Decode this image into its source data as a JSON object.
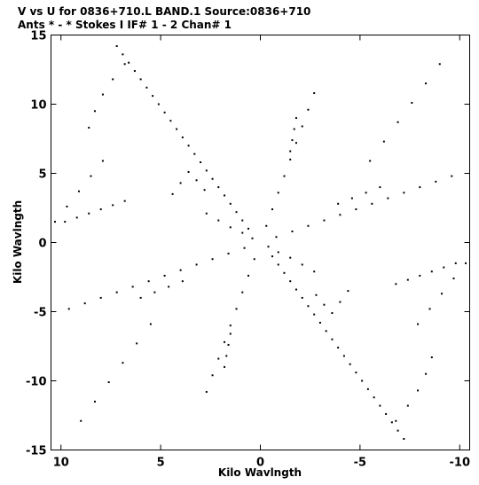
{
  "header": {
    "title_line1": "V vs U for 0836+710.L BAND.1   Source:0836+710",
    "title_line2": "Ants * - *    Stokes I  IF# 1 - 2   Chan# 1"
  },
  "chart_data": {
    "type": "scatter",
    "title": "V vs U for 0836+710.L BAND.1   Source:0836+710",
    "subtitle": "Ants * - *    Stokes I  IF# 1 - 2   Chan# 1",
    "xlabel": "Kilo Wavlngth",
    "ylabel": "Kilo Wavlngth",
    "xlim": [
      10.5,
      -10.5
    ],
    "ylim": [
      -15,
      15
    ],
    "x_axis_reversed": true,
    "grid": false,
    "x_ticks": [
      10,
      5,
      0,
      -5,
      -10
    ],
    "x_tick_labels": [
      "10",
      "5",
      "0",
      "-5",
      "-10"
    ],
    "y_ticks": [
      15,
      10,
      5,
      0,
      -5,
      -10,
      -15
    ],
    "y_tick_labels": [
      "15",
      "10",
      "5",
      "0",
      "-5",
      "-10",
      "-15"
    ],
    "marker_color": "#000000",
    "series": [
      {
        "points": [
          [
            0.6,
            1.0
          ],
          [
            0.9,
            1.6
          ],
          [
            1.2,
            2.2
          ],
          [
            1.5,
            2.8
          ],
          [
            1.8,
            3.4
          ],
          [
            2.1,
            4.0
          ],
          [
            2.4,
            4.6
          ],
          [
            2.7,
            5.2
          ],
          [
            3.0,
            5.8
          ],
          [
            3.3,
            6.4
          ],
          [
            3.6,
            7.0
          ],
          [
            3.9,
            7.6
          ],
          [
            4.2,
            8.2
          ],
          [
            4.5,
            8.8
          ],
          [
            4.8,
            9.4
          ],
          [
            5.1,
            10.0
          ],
          [
            5.4,
            10.6
          ],
          [
            5.7,
            11.2
          ],
          [
            6.0,
            11.8
          ],
          [
            6.3,
            12.4
          ],
          [
            6.6,
            13.0
          ],
          [
            6.9,
            13.6
          ],
          [
            7.2,
            14.2
          ],
          [
            -0.6,
            -1.0
          ],
          [
            -0.9,
            -1.6
          ],
          [
            -1.2,
            -2.2
          ],
          [
            -1.5,
            -2.8
          ],
          [
            -1.8,
            -3.4
          ],
          [
            -2.1,
            -4.0
          ],
          [
            -2.4,
            -4.6
          ],
          [
            -2.7,
            -5.2
          ],
          [
            -3.0,
            -5.8
          ],
          [
            -3.3,
            -6.4
          ],
          [
            -3.6,
            -7.0
          ],
          [
            -3.9,
            -7.6
          ],
          [
            -4.2,
            -8.2
          ],
          [
            -4.5,
            -8.8
          ],
          [
            -4.8,
            -9.4
          ],
          [
            -5.1,
            -10.0
          ],
          [
            -5.4,
            -10.6
          ],
          [
            -5.7,
            -11.2
          ],
          [
            -6.0,
            -11.8
          ],
          [
            -6.3,
            -12.4
          ],
          [
            -6.6,
            -13.0
          ],
          [
            -6.9,
            -13.6
          ],
          [
            -7.2,
            -14.2
          ],
          [
            -0.8,
            0.4
          ],
          [
            -1.6,
            0.8
          ],
          [
            -2.4,
            1.2
          ],
          [
            -3.2,
            1.6
          ],
          [
            -4.0,
            2.0
          ],
          [
            -4.8,
            2.4
          ],
          [
            -5.6,
            2.8
          ],
          [
            -6.4,
            3.2
          ],
          [
            -7.2,
            3.6
          ],
          [
            -8.0,
            4.0
          ],
          [
            -8.8,
            4.4
          ],
          [
            -9.6,
            4.8
          ],
          [
            0.8,
            -0.4
          ],
          [
            1.6,
            -0.8
          ],
          [
            2.4,
            -1.2
          ],
          [
            3.2,
            -1.6
          ],
          [
            4.0,
            -2.0
          ],
          [
            4.8,
            -2.4
          ],
          [
            5.6,
            -2.8
          ],
          [
            6.4,
            -3.2
          ],
          [
            7.2,
            -3.6
          ],
          [
            8.0,
            -4.0
          ],
          [
            8.8,
            -4.4
          ],
          [
            9.6,
            -4.8
          ],
          [
            -0.3,
            1.2
          ],
          [
            -0.6,
            2.4
          ],
          [
            -0.9,
            3.6
          ],
          [
            -1.2,
            4.8
          ],
          [
            -1.5,
            6.0
          ],
          [
            -1.8,
            7.2
          ],
          [
            -2.1,
            8.4
          ],
          [
            -2.4,
            9.6
          ],
          [
            -2.7,
            10.8
          ],
          [
            0.3,
            -1.2
          ],
          [
            0.6,
            -2.4
          ],
          [
            0.9,
            -3.6
          ],
          [
            1.2,
            -4.8
          ],
          [
            1.5,
            -6.0
          ],
          [
            1.8,
            -7.2
          ],
          [
            2.1,
            -8.4
          ],
          [
            2.4,
            -9.6
          ],
          [
            2.7,
            -10.8
          ],
          [
            -0.4,
            -0.3
          ],
          [
            -0.9,
            -0.7
          ],
          [
            -1.5,
            -1.1
          ],
          [
            -2.1,
            -1.6
          ],
          [
            -2.7,
            -2.1
          ],
          [
            0.4,
            0.3
          ],
          [
            0.9,
            0.7
          ],
          [
            1.5,
            1.1
          ],
          [
            2.1,
            1.6
          ],
          [
            2.7,
            2.1
          ],
          [
            3.6,
            5.1
          ],
          [
            4.0,
            4.3
          ],
          [
            4.4,
            3.5
          ],
          [
            3.2,
            4.5
          ],
          [
            2.8,
            3.8
          ],
          [
            -3.6,
            -5.1
          ],
          [
            -4.0,
            -4.3
          ],
          [
            -4.4,
            -3.5
          ],
          [
            -3.2,
            -4.5
          ],
          [
            -2.8,
            -3.8
          ],
          [
            9.8,
            1.5
          ],
          [
            9.2,
            1.8
          ],
          [
            8.6,
            2.1
          ],
          [
            8.0,
            2.4
          ],
          [
            7.4,
            2.7
          ],
          [
            6.8,
            3.0
          ],
          [
            -9.8,
            -1.5
          ],
          [
            -9.2,
            -1.8
          ],
          [
            -8.6,
            -2.1
          ],
          [
            -8.0,
            -2.4
          ],
          [
            -7.4,
            -2.7
          ],
          [
            -6.8,
            -3.0
          ],
          [
            6.8,
            12.9
          ],
          [
            7.4,
            11.8
          ],
          [
            7.9,
            10.7
          ],
          [
            8.3,
            9.5
          ],
          [
            8.6,
            8.3
          ],
          [
            -6.8,
            -12.9
          ],
          [
            -7.4,
            -11.8
          ],
          [
            -7.9,
            -10.7
          ],
          [
            -8.3,
            -9.5
          ],
          [
            -8.6,
            -8.3
          ],
          [
            -9.0,
            12.9
          ],
          [
            -8.3,
            11.5
          ],
          [
            -7.6,
            10.1
          ],
          [
            -6.9,
            8.7
          ],
          [
            -6.2,
            7.3
          ],
          [
            -5.5,
            5.9
          ],
          [
            9.0,
            -12.9
          ],
          [
            8.3,
            -11.5
          ],
          [
            7.6,
            -10.1
          ],
          [
            6.9,
            -8.7
          ],
          [
            6.2,
            -7.3
          ],
          [
            5.5,
            -5.9
          ],
          [
            -10.3,
            -1.5
          ],
          [
            -9.7,
            -2.6
          ],
          [
            -9.1,
            -3.7
          ],
          [
            -8.5,
            -4.8
          ],
          [
            -7.9,
            -5.9
          ],
          [
            10.3,
            1.5
          ],
          [
            9.7,
            2.6
          ],
          [
            9.1,
            3.7
          ],
          [
            8.5,
            4.8
          ],
          [
            7.9,
            5.9
          ],
          [
            -1.8,
            9.0
          ],
          [
            -1.7,
            8.2
          ],
          [
            -1.6,
            7.4
          ],
          [
            -1.5,
            6.6
          ],
          [
            1.8,
            -9.0
          ],
          [
            1.7,
            -8.2
          ],
          [
            1.6,
            -7.4
          ],
          [
            1.5,
            -6.6
          ],
          [
            -6.0,
            4.0
          ],
          [
            -5.3,
            3.6
          ],
          [
            -4.6,
            3.2
          ],
          [
            -3.9,
            2.8
          ],
          [
            6.0,
            -4.0
          ],
          [
            5.3,
            -3.6
          ],
          [
            4.6,
            -3.2
          ],
          [
            3.9,
            -2.8
          ]
        ]
      }
    ]
  }
}
